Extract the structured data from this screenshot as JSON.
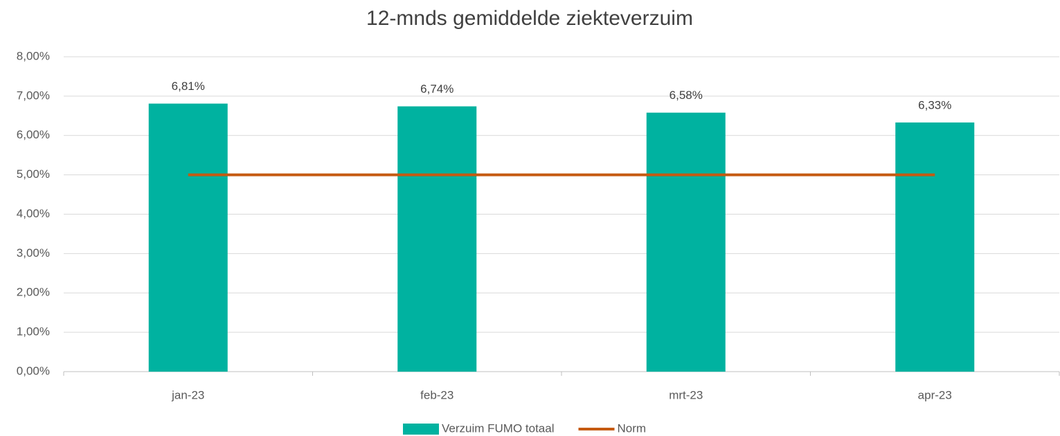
{
  "chart_data": {
    "type": "bar",
    "title": "12-mnds gemiddelde ziekteverzuim",
    "categories": [
      "jan-23",
      "feb-23",
      "mrt-23",
      "apr-23"
    ],
    "series": [
      {
        "name": "Verzuim FUMO totaal",
        "type": "bar",
        "color": "#00b2a0",
        "values": [
          6.81,
          6.74,
          6.58,
          6.33
        ],
        "value_labels": [
          "6,81%",
          "6,74%",
          "6,58%",
          "6,33%"
        ]
      },
      {
        "name": "Norm",
        "type": "line",
        "color": "#c55a11",
        "values": [
          5,
          5,
          5,
          5
        ]
      }
    ],
    "ylim": [
      0,
      8
    ],
    "yticks": [
      {
        "value": 0,
        "label": "0,00%"
      },
      {
        "value": 1,
        "label": "1,00%"
      },
      {
        "value": 2,
        "label": "2,00%"
      },
      {
        "value": 3,
        "label": "3,00%"
      },
      {
        "value": 4,
        "label": "4,00%"
      },
      {
        "value": 5,
        "label": "5,00%"
      },
      {
        "value": 6,
        "label": "6,00%"
      },
      {
        "value": 7,
        "label": "7,00%"
      },
      {
        "value": 8,
        "label": "8,00%"
      }
    ],
    "grid": true,
    "legend": "bottom"
  }
}
